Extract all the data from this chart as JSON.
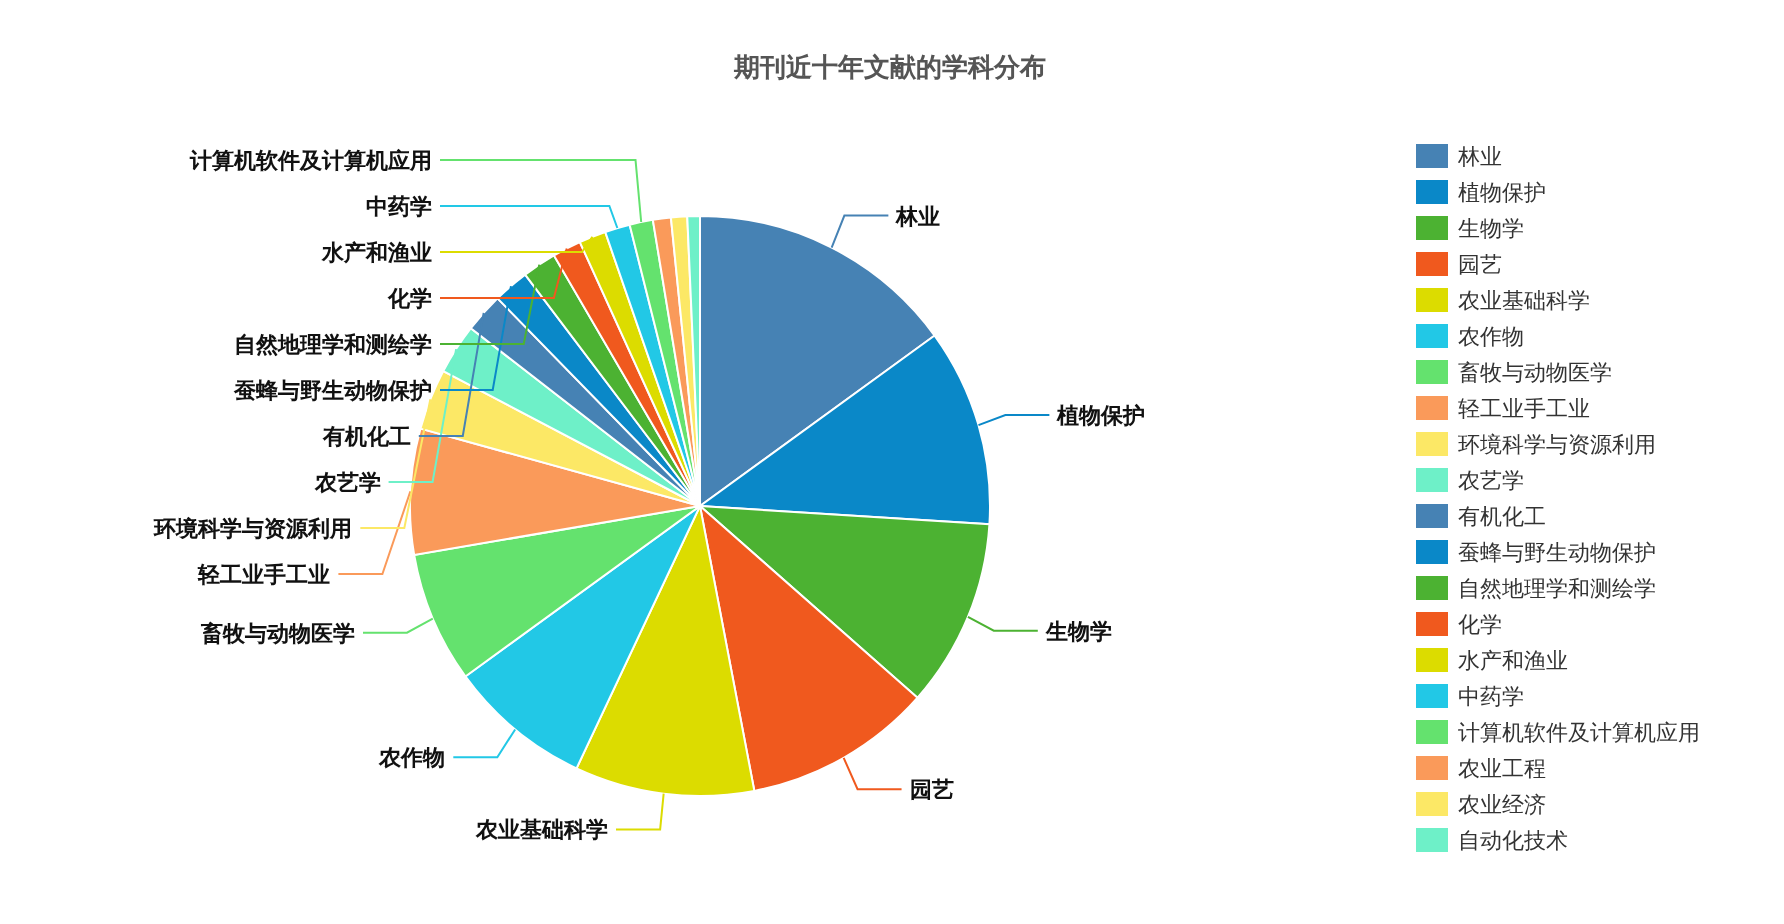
{
  "chart_data": {
    "type": "pie",
    "title": "期刊近十年文献的学科分布",
    "categories": [
      "林业",
      "植物保护",
      "生物学",
      "园艺",
      "农业基础科学",
      "农作物",
      "畜牧与动物医学",
      "轻工业手工业",
      "环境科学与资源利用",
      "农艺学",
      "有机化工",
      "蚕蜂与野生动物保护",
      "自然地理学和测绘学",
      "化学",
      "水产和渔业",
      "中药学",
      "计算机软件及计算机应用",
      "农业工程",
      "农业经济",
      "自动化技术"
    ],
    "values": [
      15,
      11,
      10.5,
      10.5,
      10,
      8,
      7.3,
      7,
      3.4,
      2.8,
      2.2,
      2.0,
      1.9,
      1.6,
      1.5,
      1.4,
      1.3,
      1.0,
      0.9,
      0.7
    ],
    "colors": [
      "#4682b4",
      "#0a88c8",
      "#4cb232",
      "#f0591e",
      "#dcdc00",
      "#22c8e6",
      "#64e26e",
      "#fa9a5a",
      "#fce866",
      "#6ef0c8",
      "#4682b4",
      "#0a88c8",
      "#4cb232",
      "#f0591e",
      "#dcdc00",
      "#22c8e6",
      "#64e26e",
      "#fa9a5a",
      "#fce866",
      "#6ef0c8"
    ],
    "legend": "right"
  }
}
